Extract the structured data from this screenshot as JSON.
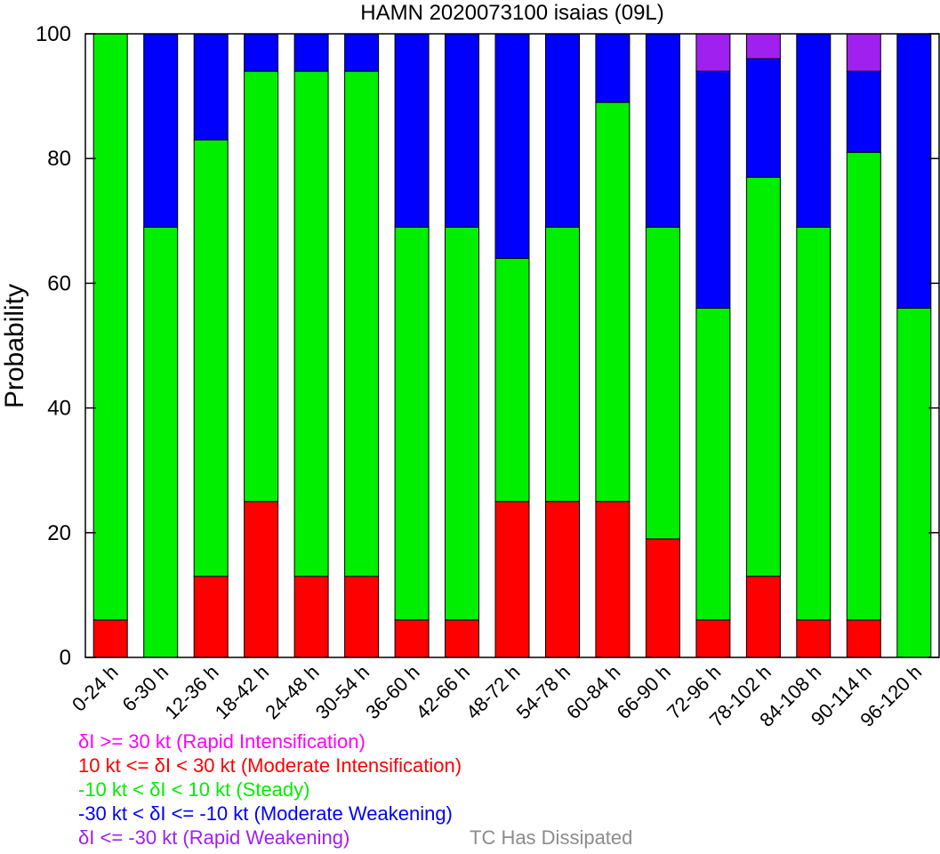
{
  "chart_data": {
    "type": "bar",
    "stacked": true,
    "title": "HAMN 2020073100 isaias (09L)",
    "xlabel": "",
    "ylabel": "Probability",
    "ylim": [
      0,
      100
    ],
    "yticks": [
      0,
      20,
      40,
      60,
      80,
      100
    ],
    "grid": false,
    "legend_position": "bottom",
    "categories": [
      "0-24 h",
      "6-30 h",
      "12-36 h",
      "18-42 h",
      "24-48 h",
      "30-54 h",
      "36-60 h",
      "42-66 h",
      "48-72 h",
      "54-78 h",
      "60-84 h",
      "66-90 h",
      "72-96 h",
      "78-102 h",
      "84-108 h",
      "90-114 h",
      "96-120 h"
    ],
    "series": [
      {
        "key": "mod_int",
        "color": "#ff0000",
        "values": [
          6,
          0,
          13,
          25,
          13,
          13,
          6,
          6,
          25,
          25,
          25,
          19,
          6,
          13,
          6,
          6,
          0
        ]
      },
      {
        "key": "steady",
        "color": "#00ee00",
        "values": [
          94,
          69,
          70,
          69,
          81,
          81,
          63,
          63,
          39,
          44,
          64,
          50,
          50,
          64,
          63,
          75,
          56
        ]
      },
      {
        "key": "mod_weak",
        "color": "#0000ff",
        "values": [
          0,
          31,
          17,
          6,
          6,
          6,
          31,
          31,
          36,
          31,
          11,
          31,
          38,
          19,
          31,
          13,
          44
        ]
      },
      {
        "key": "rapid_weak",
        "color": "#a020f0",
        "values": [
          0,
          0,
          0,
          0,
          0,
          0,
          0,
          0,
          0,
          0,
          0,
          0,
          6,
          4,
          0,
          6,
          0
        ]
      }
    ]
  },
  "legend": {
    "items": [
      {
        "label": "δI >= 30 kt (Rapid Intensification)",
        "color": "#ff00ff"
      },
      {
        "label": "10 kt <= δI < 30 kt (Moderate Intensification)",
        "color": "#ff0000"
      },
      {
        "label": "-10 kt < δI < 10 kt (Steady)",
        "color": "#00ee00"
      },
      {
        "label": "-30 kt < δI <= -10 kt (Moderate Weakening)",
        "color": "#0000ff"
      },
      {
        "label": "δI <= -30 kt (Rapid Weakening)",
        "color": "#a020f0"
      }
    ],
    "dissipated_label": "TC Has Dissipated",
    "dissipated_color": "#8c8c8c"
  }
}
